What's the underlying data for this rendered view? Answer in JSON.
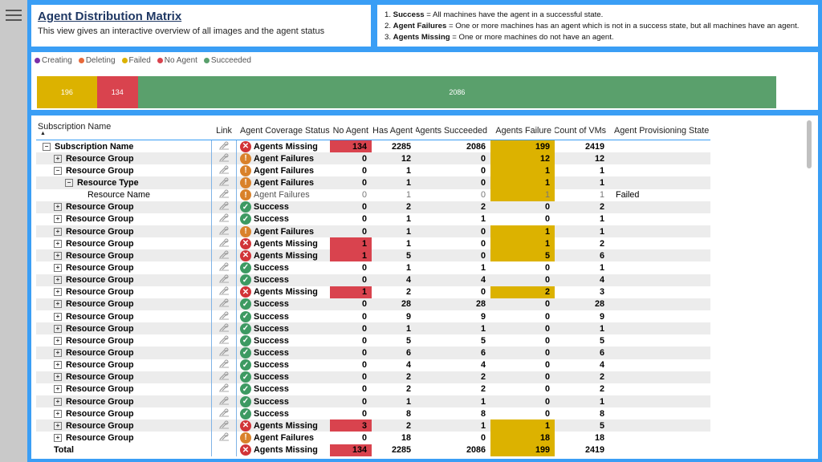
{
  "header": {
    "title": "Agent Distribution Matrix",
    "subtitle": "This view gives an interactive overview of all images and the agent status"
  },
  "definitions": [
    {
      "term": "Success",
      "text": " = All machines have the agent in a successful state."
    },
    {
      "term": "Agent Failures",
      "text": " = One or more machines has an agent which is not in a success state, but all machines have an agent."
    },
    {
      "term": "Agents Missing",
      "text": " = One or more machines do not have an agent."
    }
  ],
  "legend": [
    {
      "label": "Creating",
      "color": "#7b2fa8"
    },
    {
      "label": "Deleting",
      "color": "#e8693a"
    },
    {
      "label": "Failed",
      "color": "#dcb200"
    },
    {
      "label": "No Agent",
      "color": "#d9434e"
    },
    {
      "label": "Succeeded",
      "color": "#5aa06c"
    }
  ],
  "bar_segments": [
    {
      "label": "196",
      "value": 196,
      "color": "#dcb200"
    },
    {
      "label": "134",
      "value": 134,
      "color": "#d9434e"
    },
    {
      "label": "2086",
      "value": 2086,
      "color": "#5aa06c"
    }
  ],
  "table": {
    "columns": [
      "Subscription Name",
      "Link",
      "Agent Coverage Status",
      "No Agent",
      "Has Agent",
      "Agents Succeeded",
      "Agents Failure",
      "Count of VMs",
      "Agent Provisioning State"
    ],
    "rows": [
      {
        "name": "Subscription Name",
        "level": 0,
        "toggle": "minus",
        "status": "Agents Missing",
        "na": "134",
        "ha": "2285",
        "as": "2086",
        "af": "199",
        "vm": "2419",
        "prov": "",
        "bold": true
      },
      {
        "name": "Resource Group",
        "level": 1,
        "toggle": "plus",
        "status": "Agent Failures",
        "na": "0",
        "ha": "12",
        "as": "0",
        "af": "12",
        "vm": "12",
        "prov": "",
        "bold": true
      },
      {
        "name": "Resource Group",
        "level": 1,
        "toggle": "minus",
        "status": "Agent Failures",
        "na": "0",
        "ha": "1",
        "as": "0",
        "af": "1",
        "vm": "1",
        "prov": "",
        "bold": true
      },
      {
        "name": "Resource Type",
        "level": 2,
        "toggle": "minus",
        "status": "Agent Failures",
        "na": "0",
        "ha": "1",
        "as": "0",
        "af": "1",
        "vm": "1",
        "prov": "",
        "bold": true
      },
      {
        "name": "Resource Name",
        "level": 3,
        "toggle": "",
        "status": "Agent Failures",
        "na": "0",
        "ha": "1",
        "as": "0",
        "af": "1",
        "vm": "1",
        "prov": "Failed",
        "bold": false
      },
      {
        "name": "Resource Group",
        "level": 1,
        "toggle": "plus",
        "status": "Success",
        "na": "0",
        "ha": "2",
        "as": "2",
        "af": "0",
        "vm": "2",
        "prov": "",
        "bold": true
      },
      {
        "name": "Resource Group",
        "level": 1,
        "toggle": "plus",
        "status": "Success",
        "na": "0",
        "ha": "1",
        "as": "1",
        "af": "0",
        "vm": "1",
        "prov": "",
        "bold": true
      },
      {
        "name": "Resource Group",
        "level": 1,
        "toggle": "plus",
        "status": "Agent Failures",
        "na": "0",
        "ha": "1",
        "as": "0",
        "af": "1",
        "vm": "1",
        "prov": "",
        "bold": true
      },
      {
        "name": "Resource Group",
        "level": 1,
        "toggle": "plus",
        "status": "Agents Missing",
        "na": "1",
        "ha": "1",
        "as": "0",
        "af": "1",
        "vm": "2",
        "prov": "",
        "bold": true
      },
      {
        "name": "Resource Group",
        "level": 1,
        "toggle": "plus",
        "status": "Agents Missing",
        "na": "1",
        "ha": "5",
        "as": "0",
        "af": "5",
        "vm": "6",
        "prov": "",
        "bold": true
      },
      {
        "name": "Resource Group",
        "level": 1,
        "toggle": "plus",
        "status": "Success",
        "na": "0",
        "ha": "1",
        "as": "1",
        "af": "0",
        "vm": "1",
        "prov": "",
        "bold": true
      },
      {
        "name": "Resource Group",
        "level": 1,
        "toggle": "plus",
        "status": "Success",
        "na": "0",
        "ha": "4",
        "as": "4",
        "af": "0",
        "vm": "4",
        "prov": "",
        "bold": true
      },
      {
        "name": "Resource Group",
        "level": 1,
        "toggle": "plus",
        "status": "Agents Missing",
        "na": "1",
        "ha": "2",
        "as": "0",
        "af": "2",
        "vm": "3",
        "prov": "",
        "bold": true
      },
      {
        "name": "Resource Group",
        "level": 1,
        "toggle": "plus",
        "status": "Success",
        "na": "0",
        "ha": "28",
        "as": "28",
        "af": "0",
        "vm": "28",
        "prov": "",
        "bold": true
      },
      {
        "name": "Resource Group",
        "level": 1,
        "toggle": "plus",
        "status": "Success",
        "na": "0",
        "ha": "9",
        "as": "9",
        "af": "0",
        "vm": "9",
        "prov": "",
        "bold": true
      },
      {
        "name": "Resource Group",
        "level": 1,
        "toggle": "plus",
        "status": "Success",
        "na": "0",
        "ha": "1",
        "as": "1",
        "af": "0",
        "vm": "1",
        "prov": "",
        "bold": true
      },
      {
        "name": "Resource Group",
        "level": 1,
        "toggle": "plus",
        "status": "Success",
        "na": "0",
        "ha": "5",
        "as": "5",
        "af": "0",
        "vm": "5",
        "prov": "",
        "bold": true
      },
      {
        "name": "Resource Group",
        "level": 1,
        "toggle": "plus",
        "status": "Success",
        "na": "0",
        "ha": "6",
        "as": "6",
        "af": "0",
        "vm": "6",
        "prov": "",
        "bold": true
      },
      {
        "name": "Resource Group",
        "level": 1,
        "toggle": "plus",
        "status": "Success",
        "na": "0",
        "ha": "4",
        "as": "4",
        "af": "0",
        "vm": "4",
        "prov": "",
        "bold": true
      },
      {
        "name": "Resource Group",
        "level": 1,
        "toggle": "plus",
        "status": "Success",
        "na": "0",
        "ha": "2",
        "as": "2",
        "af": "0",
        "vm": "2",
        "prov": "",
        "bold": true
      },
      {
        "name": "Resource Group",
        "level": 1,
        "toggle": "plus",
        "status": "Success",
        "na": "0",
        "ha": "2",
        "as": "2",
        "af": "0",
        "vm": "2",
        "prov": "",
        "bold": true
      },
      {
        "name": "Resource Group",
        "level": 1,
        "toggle": "plus",
        "status": "Success",
        "na": "0",
        "ha": "1",
        "as": "1",
        "af": "0",
        "vm": "1",
        "prov": "",
        "bold": true
      },
      {
        "name": "Resource Group",
        "level": 1,
        "toggle": "plus",
        "status": "Success",
        "na": "0",
        "ha": "8",
        "as": "8",
        "af": "0",
        "vm": "8",
        "prov": "",
        "bold": true
      },
      {
        "name": "Resource Group",
        "level": 1,
        "toggle": "plus",
        "status": "Agents Missing",
        "na": "3",
        "ha": "2",
        "as": "1",
        "af": "1",
        "vm": "5",
        "prov": "",
        "bold": true
      },
      {
        "name": "Resource Group",
        "level": 1,
        "toggle": "plus",
        "status": "Agent Failures",
        "na": "0",
        "ha": "18",
        "as": "0",
        "af": "18",
        "vm": "18",
        "prov": "",
        "bold": true
      }
    ],
    "total": {
      "name": "Total",
      "status": "Agents Missing",
      "na": "134",
      "ha": "2285",
      "as": "2086",
      "af": "199",
      "vm": "2419",
      "prov": ""
    }
  }
}
